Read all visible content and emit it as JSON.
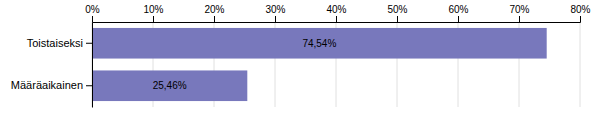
{
  "chart_data": {
    "type": "bar",
    "orientation": "horizontal",
    "categories": [
      "Toistaiseksi",
      "Määräaikainen"
    ],
    "values": [
      74.54,
      25.46
    ],
    "value_labels": [
      "74,54%",
      "25,46%"
    ],
    "data_labels": true,
    "color": "#7878bc",
    "xlim": [
      0,
      80
    ],
    "xticks": [
      {
        "value": 0,
        "label": "0%"
      },
      {
        "value": 10,
        "label": "10%"
      },
      {
        "value": 20,
        "label": "20%"
      },
      {
        "value": 30,
        "label": "30%"
      },
      {
        "value": 40,
        "label": "40%"
      },
      {
        "value": 50,
        "label": "50%"
      },
      {
        "value": 60,
        "label": "60%"
      },
      {
        "value": 70,
        "label": "70%"
      },
      {
        "value": 80,
        "label": "80%"
      }
    ],
    "grid": true
  }
}
